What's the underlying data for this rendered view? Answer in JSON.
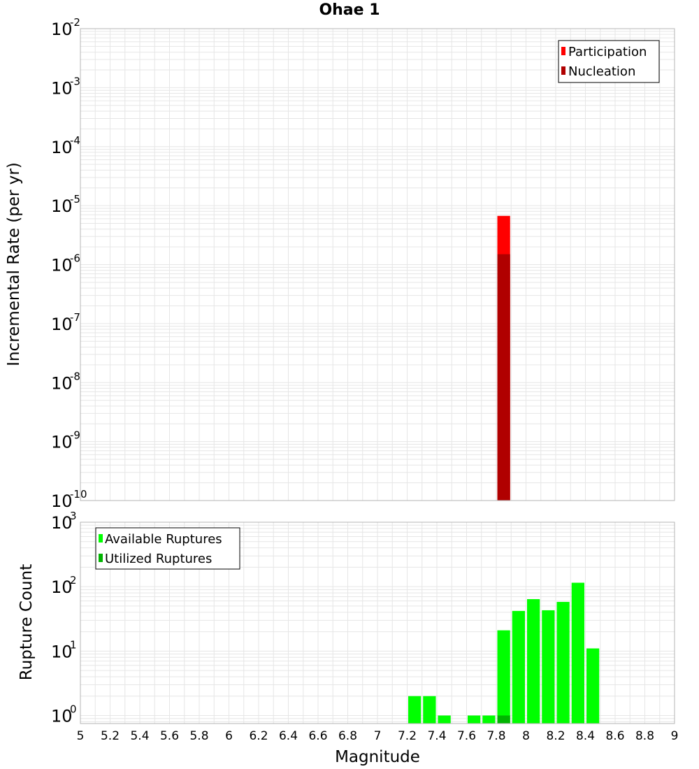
{
  "colors": {
    "participation": "#ff0000",
    "nucleation": "#b00000",
    "available": "#00ff00",
    "utilized": "#00b400",
    "grid": "#e6e6e6",
    "frame": "#b4b4b4"
  },
  "chart_data": [
    {
      "type": "bar",
      "title": "Ohae 1",
      "xlabel": "Magnitude",
      "ylabel": "Incremental Rate (per yr)",
      "yscale": "log",
      "xlim": [
        5,
        9
      ],
      "ylim": [
        1e-10,
        0.01
      ],
      "ytick_labels": [
        {
          "exp": 0,
          "base": "10",
          "power": "-10"
        },
        {
          "exp": 0,
          "base": "10",
          "power": "-9"
        },
        {
          "exp": 0,
          "base": "10",
          "power": "-8"
        },
        {
          "exp": 0,
          "base": "10",
          "power": "-7"
        },
        {
          "exp": 0,
          "base": "10",
          "power": "-6"
        },
        {
          "exp": 0,
          "base": "10",
          "power": "-5"
        },
        {
          "exp": 0,
          "base": "10",
          "power": "-4"
        },
        {
          "exp": 0,
          "base": "10",
          "power": "-3"
        },
        {
          "exp": 0,
          "base": "10",
          "power": "-2"
        }
      ],
      "legend": {
        "position": "top-right",
        "entries": [
          "Participation",
          "Nucleation"
        ]
      },
      "series": [
        {
          "name": "Participation",
          "x": [
            7.85
          ],
          "values": [
            6.7e-06
          ]
        },
        {
          "name": "Nucleation",
          "x": [
            7.85
          ],
          "values": [
            1.5e-06
          ]
        }
      ]
    },
    {
      "type": "bar",
      "xlabel": "Magnitude",
      "ylabel": "Rupture Count",
      "yscale": "log",
      "xlim": [
        5,
        9
      ],
      "ylim": [
        0.75,
        1000
      ],
      "xtick_labels": [
        "5",
        "5.2",
        "5.4",
        "5.6",
        "5.8",
        "6",
        "6.2",
        "6.4",
        "6.6",
        "6.8",
        "7",
        "7.2",
        "7.4",
        "7.6",
        "7.8",
        "8",
        "8.2",
        "8.4",
        "8.6",
        "8.8",
        "9"
      ],
      "ytick_labels": [
        {
          "base": "10",
          "power": "0"
        },
        {
          "base": "10",
          "power": "1"
        },
        {
          "base": "10",
          "power": "2"
        },
        {
          "base": "10",
          "power": "3"
        }
      ],
      "legend": {
        "position": "top-left",
        "entries": [
          "Available Ruptures",
          "Utilized Ruptures"
        ]
      },
      "series": [
        {
          "name": "Available Ruptures",
          "x": [
            7.25,
            7.35,
            7.45,
            7.65,
            7.75,
            7.85,
            7.95,
            8.05,
            8.15,
            8.25,
            8.35,
            8.45
          ],
          "values": [
            2,
            2,
            1,
            1,
            1,
            21,
            42,
            64,
            43,
            58,
            115,
            11
          ]
        },
        {
          "name": "Utilized Ruptures",
          "x": [
            7.85
          ],
          "values": [
            1
          ]
        }
      ]
    }
  ]
}
